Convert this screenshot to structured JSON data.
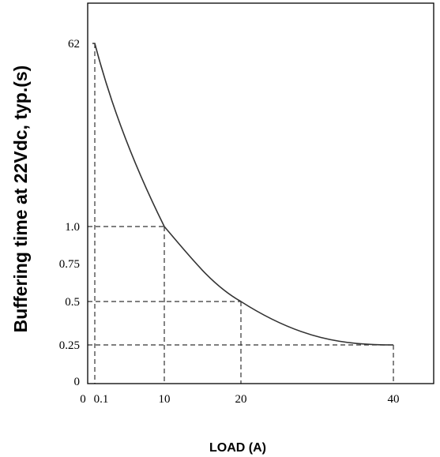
{
  "chart_data": {
    "type": "line",
    "title": "",
    "xlabel": "LOAD (A)",
    "ylabel": "Buffering time at 22Vdc, typ.(s)",
    "x_ticks": [
      {
        "value": 0,
        "label": "0"
      },
      {
        "value": 0.1,
        "label": "0.1"
      },
      {
        "value": 10,
        "label": "10"
      },
      {
        "value": 20,
        "label": "20"
      },
      {
        "value": 40,
        "label": "40"
      }
    ],
    "y_ticks": [
      {
        "value": 0,
        "label": "0"
      },
      {
        "value": 0.25,
        "label": "0.25"
      },
      {
        "value": 0.5,
        "label": "0.5"
      },
      {
        "value": 0.75,
        "label": "0.75"
      },
      {
        "value": 1.0,
        "label": "1.0"
      },
      {
        "value": 62,
        "label": "62"
      }
    ],
    "series": [
      {
        "values": [
          {
            "x": 0,
            "y": 62
          },
          {
            "x": 0.1,
            "y": 62
          },
          {
            "x": 10,
            "y": 1.0
          },
          {
            "x": 20,
            "y": 0.5
          },
          {
            "x": 40,
            "y": 0.25
          }
        ]
      }
    ],
    "reference_points": [
      {
        "x": 0.1,
        "y": 62
      },
      {
        "x": 10,
        "y": 1.0
      },
      {
        "x": 20,
        "y": 0.5
      },
      {
        "x": 40,
        "y": 0.25
      }
    ],
    "y_scale": "non-linear",
    "grid": false,
    "legend": "none",
    "colors": {
      "curve": "#333333",
      "axis": "#000000",
      "guides": "#333333"
    }
  }
}
